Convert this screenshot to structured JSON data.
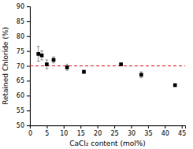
{
  "chart_data": {
    "type": "scatter",
    "xlabel": "CaCl₂ content (mol%)",
    "ylabel": "Retained Chloride (%)",
    "x": [
      2.5,
      3.5,
      5,
      7,
      11,
      16,
      27,
      33,
      43
    ],
    "values": [
      74.0,
      73.5,
      70.5,
      72.0,
      69.5,
      68.0,
      70.5,
      67.0,
      63.5
    ],
    "yerr": [
      2.5,
      1.5,
      1.5,
      1.0,
      1.0,
      0.5,
      0.5,
      1.0,
      0.0
    ],
    "color": "black",
    "marker": "square",
    "hline": {
      "y": 70.0,
      "color": "#e03030",
      "line_style": "dashed"
    },
    "xlim": [
      0,
      46
    ],
    "ylim": [
      50,
      90
    ],
    "xticks": [
      0,
      5,
      10,
      15,
      20,
      25,
      30,
      35,
      40,
      45
    ],
    "yticks": [
      50,
      55,
      60,
      65,
      70,
      75,
      80,
      85,
      90
    ],
    "grid": false
  }
}
